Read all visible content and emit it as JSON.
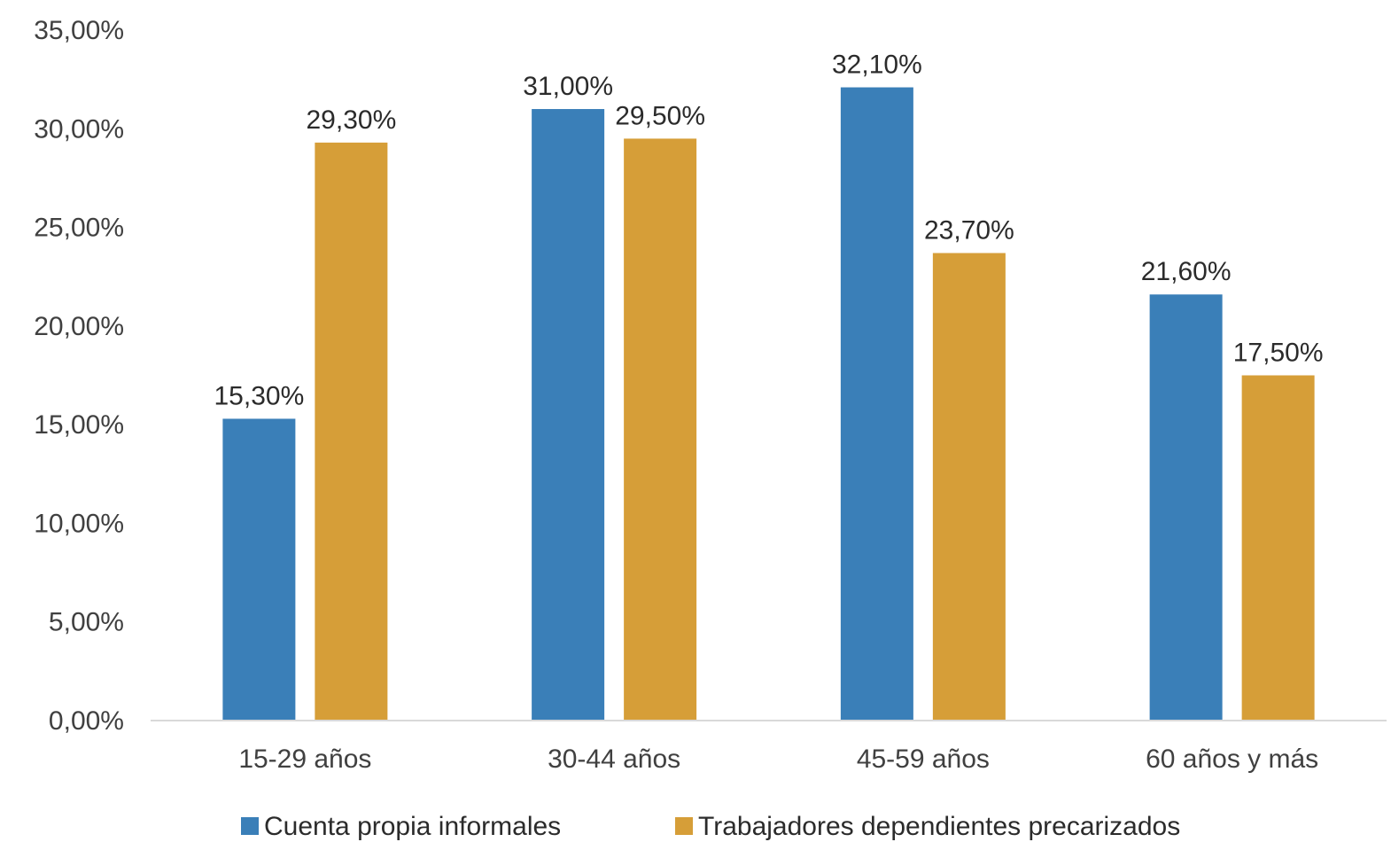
{
  "chart_data": {
    "type": "bar",
    "categories": [
      "15-29  años",
      "30-44 años",
      "45-59 años",
      "60  años y más"
    ],
    "series": [
      {
        "name": "Cuenta propia informales",
        "color": "#3a7fb8",
        "values": [
          15.3,
          31.0,
          32.1,
          21.6
        ],
        "labels": [
          "15,30%",
          "31,00%",
          "32,10%",
          "21,60%"
        ]
      },
      {
        "name": "Trabajadores dependientes precarizados",
        "color": "#d69e38",
        "values": [
          29.3,
          29.5,
          23.7,
          17.5
        ],
        "labels": [
          "29,30%",
          "29,50%",
          "23,70%",
          "17,50%"
        ]
      }
    ],
    "y_ticks": [
      "0,00%",
      "5,00%",
      "10,00%",
      "15,00%",
      "20,00%",
      "25,00%",
      "30,00%",
      "35,00%"
    ],
    "ylim": [
      0,
      35
    ],
    "grid": false,
    "legend_position": "bottom"
  }
}
